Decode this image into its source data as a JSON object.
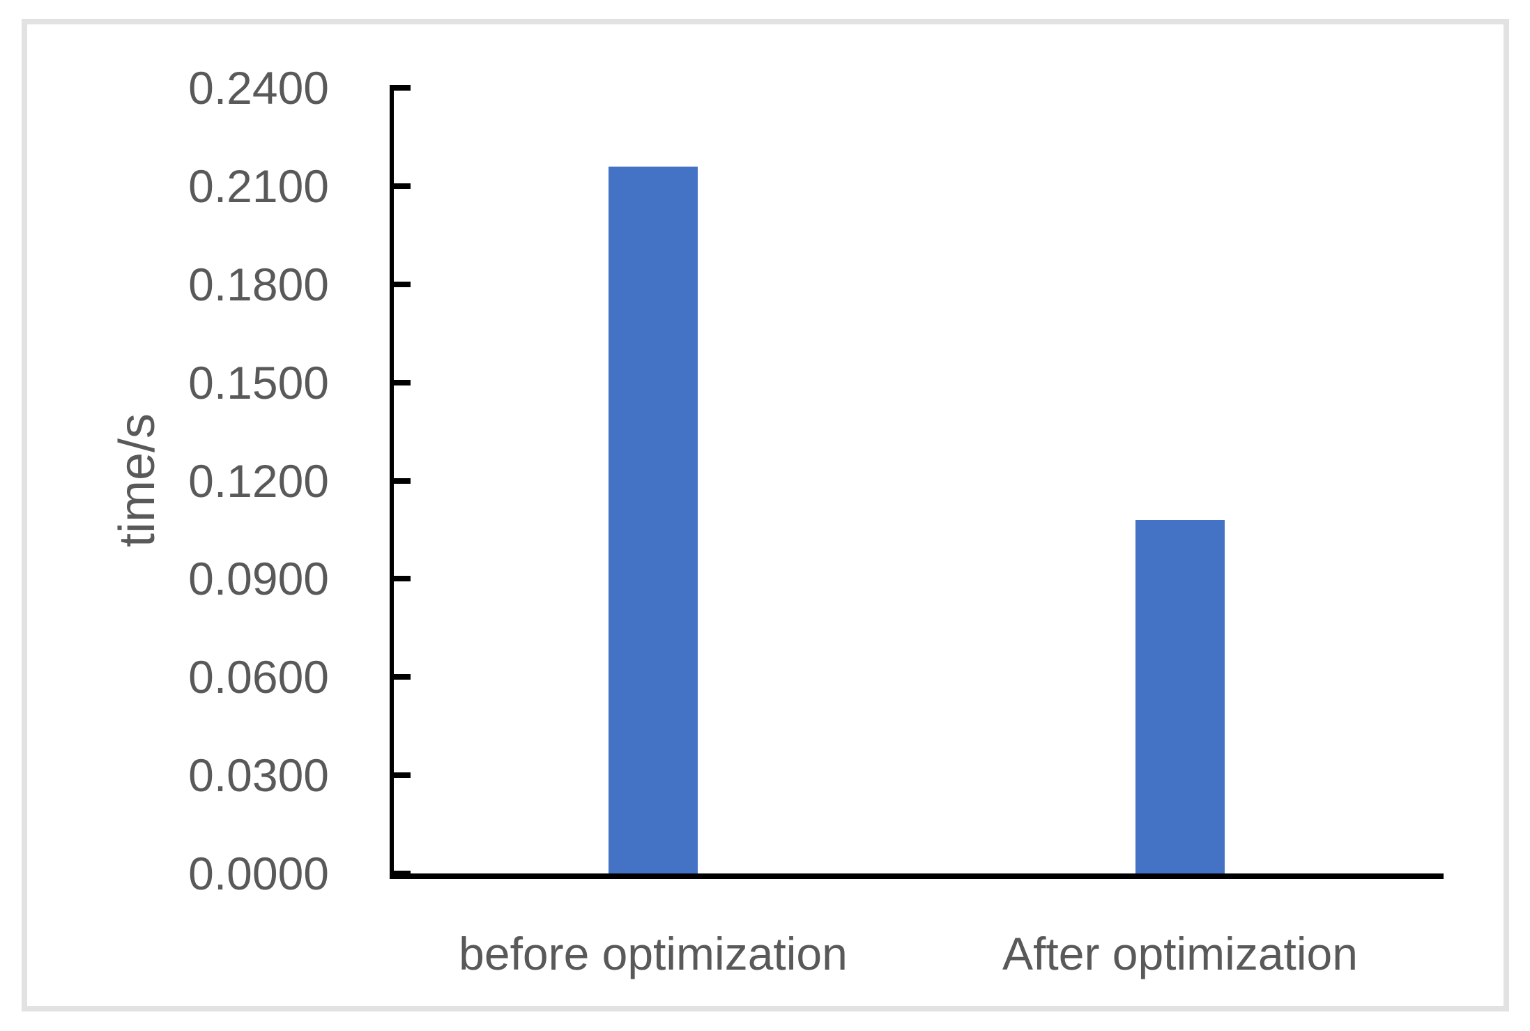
{
  "chart_data": {
    "type": "bar",
    "title": "",
    "categories": [
      "before optimization",
      "After optimization"
    ],
    "values": [
      0.216,
      0.108
    ],
    "series": [
      {
        "name": "time",
        "values": [
          0.216,
          0.108
        ]
      }
    ],
    "xlabel": "",
    "ylabel": "time/s",
    "ylim": [
      0.0,
      0.24
    ],
    "ytick_interval": 0.03,
    "ytick_labels": [
      "0.2400",
      "0.2100",
      "0.1800",
      "0.1500",
      "0.1200",
      "0.0900",
      "0.0600",
      "0.0300",
      "0.0000"
    ],
    "grid": false,
    "legend_position": "none",
    "bar_color": "#4472c4",
    "axis_color": "#000000",
    "label_color": "#595959",
    "frame_color": "#e2e2e2",
    "tick_direction": "inside"
  }
}
